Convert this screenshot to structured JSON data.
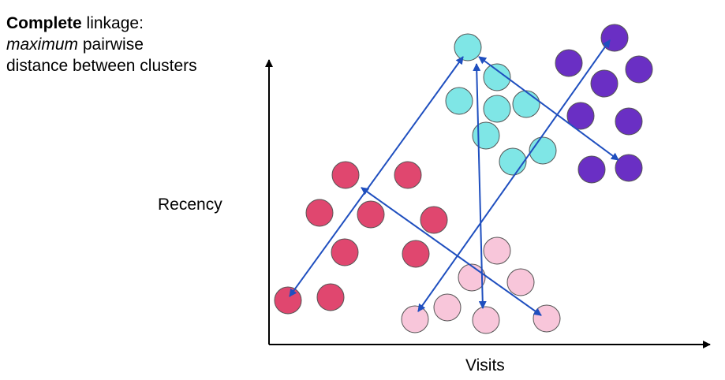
{
  "caption": {
    "bold": "Complete",
    "rest1": " linkage:",
    "italic": "maximum",
    "rest2": " pairwise",
    "line3": "distance between clusters"
  },
  "axes": {
    "xlabel": "Visits",
    "ylabel": "Recency"
  },
  "colors": {
    "axis": "#000000",
    "arrow": "#1f4fbf",
    "pink_dark": "#e0476f",
    "pink_light": "#f8c6da",
    "cyan": "#7fe6e6",
    "purple": "#6a2fc4"
  },
  "clusters": [
    {
      "name": "pink-dark",
      "color_key": "pink_dark",
      "points": [
        [
          438,
          222
        ],
        [
          517,
          222
        ],
        [
          405,
          270
        ],
        [
          470,
          272
        ],
        [
          550,
          279
        ],
        [
          437,
          320
        ],
        [
          527,
          322
        ],
        [
          365,
          381
        ],
        [
          419,
          377
        ]
      ]
    },
    {
      "name": "pink-light",
      "color_key": "pink_light",
      "points": [
        [
          630,
          318
        ],
        [
          598,
          352
        ],
        [
          660,
          358
        ],
        [
          567,
          390
        ],
        [
          526,
          405
        ],
        [
          616,
          406
        ],
        [
          693,
          404
        ]
      ]
    },
    {
      "name": "cyan",
      "color_key": "cyan",
      "points": [
        [
          593,
          60
        ],
        [
          630,
          98
        ],
        [
          582,
          128
        ],
        [
          630,
          138
        ],
        [
          667,
          132
        ],
        [
          616,
          172
        ],
        [
          688,
          191
        ],
        [
          650,
          205
        ]
      ]
    },
    {
      "name": "purple",
      "color_key": "purple",
      "points": [
        [
          779,
          48
        ],
        [
          721,
          80
        ],
        [
          810,
          88
        ],
        [
          766,
          106
        ],
        [
          736,
          147
        ],
        [
          797,
          154
        ],
        [
          750,
          215
        ],
        [
          797,
          213
        ]
      ]
    }
  ],
  "links": [
    [
      [
        367,
        376
      ],
      [
        587,
        72
      ]
    ],
    [
      [
        458,
        238
      ],
      [
        686,
        400
      ]
    ],
    [
      [
        604,
        81
      ],
      [
        612,
        391
      ]
    ],
    [
      [
        530,
        395
      ],
      [
        773,
        51
      ]
    ],
    [
      [
        607,
        72
      ],
      [
        784,
        203
      ]
    ]
  ]
}
